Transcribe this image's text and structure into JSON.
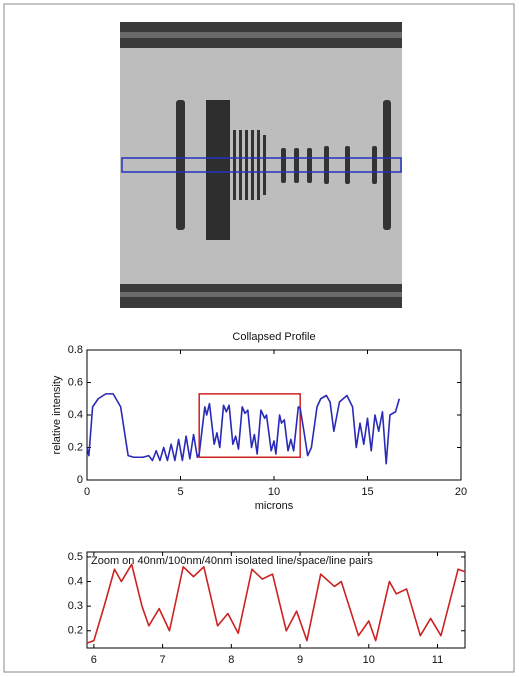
{
  "chart_data": [
    {
      "type": "line",
      "title": "Collapsed Profile",
      "x_label": "microns",
      "y_label": "relative intensity",
      "xlim": [
        0,
        20
      ],
      "xticks": [
        0,
        5,
        10,
        15,
        20
      ],
      "ylim": [
        0,
        0.8
      ],
      "yticks": [
        0,
        0.2,
        0.4,
        0.6,
        0.8
      ],
      "highlight_box": {
        "xlim": [
          6,
          11.4
        ],
        "ylim": [
          0.14,
          0.53
        ],
        "color": "#cc2222"
      },
      "series": [
        {
          "color": "#2a2ab8",
          "x": [
            0,
            0.1,
            0.3,
            0.6,
            1.0,
            1.4,
            1.8,
            2.0,
            2.2,
            2.5,
            3.0,
            3.3,
            3.5,
            3.7,
            3.9,
            4.1,
            4.3,
            4.5,
            4.7,
            4.9,
            5.1,
            5.3,
            5.5,
            5.7,
            5.9,
            6.0,
            6.3,
            6.4,
            6.55,
            6.8,
            6.95,
            7.1,
            7.3,
            7.45,
            7.6,
            7.8,
            7.95,
            8.1,
            8.3,
            8.45,
            8.6,
            8.8,
            8.95,
            9.1,
            9.3,
            9.5,
            9.6,
            9.85,
            10.0,
            10.1,
            10.3,
            10.4,
            10.55,
            10.75,
            10.9,
            11.05,
            11.3,
            11.4,
            11.6,
            11.8,
            12.0,
            12.3,
            12.5,
            12.8,
            13.0,
            13.2,
            13.5,
            13.9,
            14.2,
            14.4,
            14.6,
            14.8,
            15.0,
            15.2,
            15.4,
            15.6,
            15.8,
            16.0,
            16.2,
            16.5,
            16.7
          ],
          "values": [
            0.2,
            0.15,
            0.45,
            0.5,
            0.53,
            0.53,
            0.45,
            0.3,
            0.15,
            0.14,
            0.14,
            0.15,
            0.12,
            0.18,
            0.12,
            0.2,
            0.12,
            0.22,
            0.12,
            0.25,
            0.12,
            0.27,
            0.13,
            0.28,
            0.14,
            0.16,
            0.45,
            0.4,
            0.47,
            0.22,
            0.29,
            0.2,
            0.46,
            0.42,
            0.46,
            0.22,
            0.27,
            0.19,
            0.45,
            0.41,
            0.43,
            0.2,
            0.28,
            0.16,
            0.43,
            0.38,
            0.4,
            0.18,
            0.24,
            0.16,
            0.4,
            0.35,
            0.37,
            0.18,
            0.25,
            0.18,
            0.45,
            0.44,
            0.3,
            0.15,
            0.2,
            0.45,
            0.5,
            0.52,
            0.48,
            0.3,
            0.48,
            0.52,
            0.45,
            0.2,
            0.35,
            0.22,
            0.38,
            0.18,
            0.4,
            0.3,
            0.42,
            0.1,
            0.4,
            0.42,
            0.5
          ]
        }
      ]
    },
    {
      "type": "line",
      "annotation": "Zoom on 40nm/100nm/40nm isolated line/space/line pairs",
      "xlim": [
        5.9,
        11.4
      ],
      "xticks": [
        6,
        7,
        8,
        9,
        10,
        11
      ],
      "ylim": [
        0.13,
        0.52
      ],
      "yticks": [
        0.2,
        0.3,
        0.4,
        0.5
      ],
      "series": [
        {
          "color": "#cc2222",
          "x": [
            5.9,
            6.0,
            6.15,
            6.3,
            6.4,
            6.55,
            6.7,
            6.8,
            6.95,
            7.1,
            7.3,
            7.45,
            7.6,
            7.8,
            7.95,
            8.1,
            8.3,
            8.45,
            8.6,
            8.8,
            8.95,
            9.1,
            9.3,
            9.5,
            9.6,
            9.85,
            10.0,
            10.1,
            10.3,
            10.4,
            10.55,
            10.75,
            10.9,
            11.05,
            11.3,
            11.4
          ],
          "values": [
            0.15,
            0.16,
            0.3,
            0.45,
            0.4,
            0.47,
            0.3,
            0.22,
            0.29,
            0.2,
            0.46,
            0.42,
            0.46,
            0.22,
            0.27,
            0.19,
            0.45,
            0.41,
            0.43,
            0.2,
            0.28,
            0.16,
            0.43,
            0.38,
            0.4,
            0.18,
            0.24,
            0.16,
            0.4,
            0.35,
            0.37,
            0.18,
            0.25,
            0.18,
            0.45,
            0.44
          ]
        }
      ]
    }
  ]
}
